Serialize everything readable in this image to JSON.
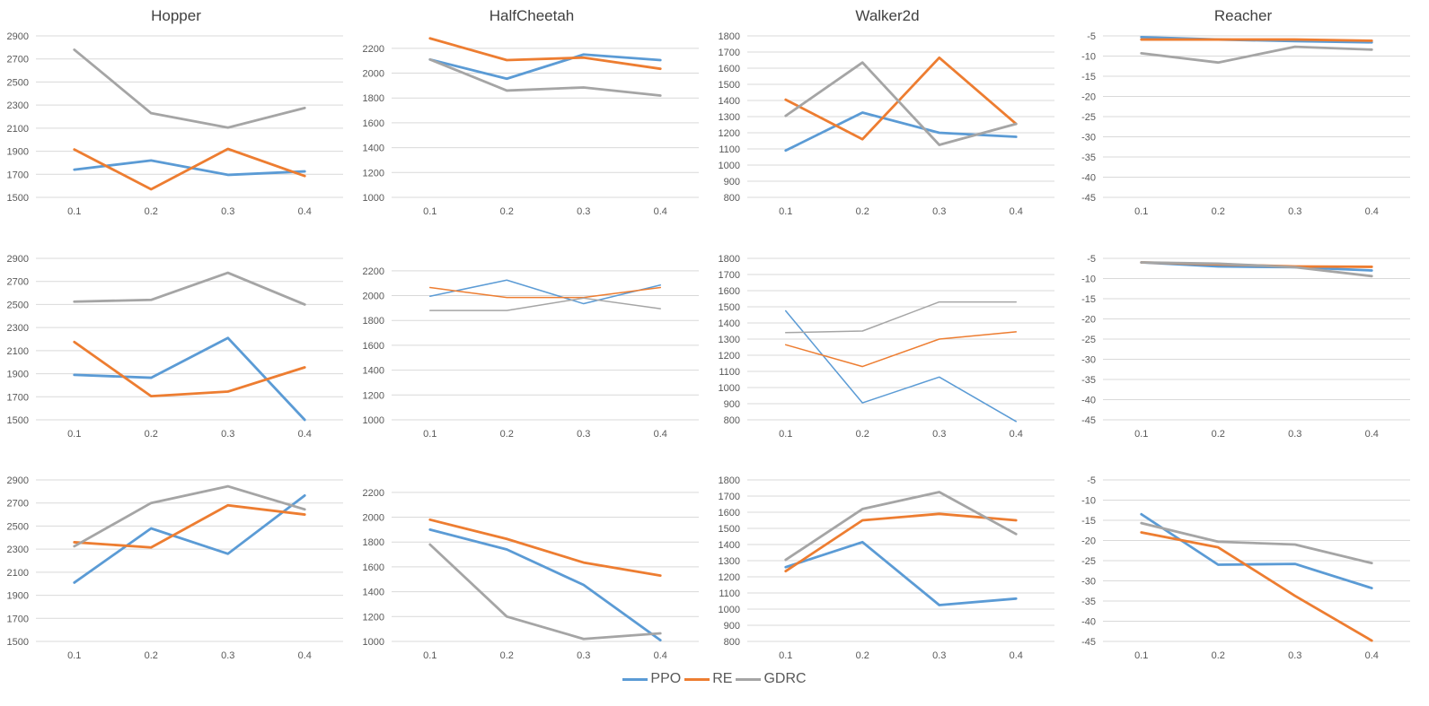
{
  "colors": {
    "PPO": "#5B9BD5",
    "RE": "#ED7D31",
    "GDRC": "#A5A5A5"
  },
  "legend": [
    {
      "name": "PPO",
      "color": "#5B9BD5"
    },
    {
      "name": "RE",
      "color": "#ED7D31"
    },
    {
      "name": "GDRC",
      "color": "#A5A5A5"
    }
  ],
  "columns": [
    "Hopper",
    "HalfCheetah",
    "Walker2d",
    "Reacher"
  ],
  "chart_data": [
    {
      "type": "line",
      "env": "Hopper",
      "row": 0,
      "title": "Hopper",
      "categories": [
        "0.1",
        "0.2",
        "0.3",
        "0.4"
      ],
      "yticks": [
        1500,
        1700,
        1900,
        2100,
        2300,
        2500,
        2700,
        2900
      ],
      "ylim": [
        1500,
        2900
      ],
      "series": [
        {
          "name": "PPO",
          "values": [
            1740,
            1820,
            1695,
            1725
          ],
          "thin": false
        },
        {
          "name": "RE",
          "values": [
            1915,
            1570,
            1920,
            1685
          ],
          "thin": false
        },
        {
          "name": "GDRC",
          "values": [
            2780,
            2230,
            2105,
            2275
          ],
          "thin": false
        }
      ]
    },
    {
      "type": "line",
      "env": "HalfCheetah",
      "row": 0,
      "title": "HalfCheetah",
      "categories": [
        "0.1",
        "0.2",
        "0.3",
        "0.4"
      ],
      "yticks": [
        1000,
        1200,
        1400,
        1600,
        1800,
        2000,
        2200
      ],
      "ylim": [
        1000,
        2300
      ],
      "series": [
        {
          "name": "PPO",
          "values": [
            2110,
            1955,
            2150,
            2105
          ],
          "thin": false
        },
        {
          "name": "RE",
          "values": [
            2280,
            2105,
            2125,
            2035
          ],
          "thin": false
        },
        {
          "name": "GDRC",
          "values": [
            2110,
            1860,
            1885,
            1820
          ],
          "thin": false
        }
      ]
    },
    {
      "type": "line",
      "env": "Walker2d",
      "row": 0,
      "title": "Walker2d",
      "categories": [
        "0.1",
        "0.2",
        "0.3",
        "0.4"
      ],
      "yticks": [
        800,
        900,
        1000,
        1100,
        1200,
        1300,
        1400,
        1500,
        1600,
        1700,
        1800
      ],
      "ylim": [
        800,
        1800
      ],
      "series": [
        {
          "name": "PPO",
          "values": [
            1090,
            1325,
            1200,
            1175
          ],
          "thin": false
        },
        {
          "name": "RE",
          "values": [
            1405,
            1160,
            1665,
            1255
          ],
          "thin": false
        },
        {
          "name": "GDRC",
          "values": [
            1305,
            1635,
            1125,
            1255
          ],
          "thin": false
        }
      ]
    },
    {
      "type": "line",
      "env": "Reacher",
      "row": 0,
      "title": "Reacher",
      "categories": [
        "0.1",
        "0.2",
        "0.3",
        "0.4"
      ],
      "yticks": [
        -45,
        -40,
        -35,
        -30,
        -25,
        -20,
        -15,
        -10,
        -5
      ],
      "ylim": [
        -45,
        -5
      ],
      "series": [
        {
          "name": "PPO",
          "values": [
            -5.3,
            -5.9,
            -6.3,
            -6.6
          ],
          "thin": false
        },
        {
          "name": "RE",
          "values": [
            -5.9,
            -5.9,
            -5.9,
            -6.2
          ],
          "thin": false
        },
        {
          "name": "GDRC",
          "values": [
            -9.3,
            -11.6,
            -7.7,
            -8.4
          ],
          "thin": false
        }
      ]
    },
    {
      "type": "line",
      "env": "Hopper",
      "row": 1,
      "categories": [
        "0.1",
        "0.2",
        "0.3",
        "0.4"
      ],
      "yticks": [
        1500,
        1700,
        1900,
        2100,
        2300,
        2500,
        2700,
        2900
      ],
      "ylim": [
        1500,
        2900
      ],
      "series": [
        {
          "name": "PPO",
          "values": [
            1890,
            1865,
            2210,
            1500
          ],
          "thin": false
        },
        {
          "name": "RE",
          "values": [
            2175,
            1705,
            1745,
            1955
          ],
          "thin": false
        },
        {
          "name": "GDRC",
          "values": [
            2525,
            2540,
            2775,
            2500
          ],
          "thin": false
        }
      ]
    },
    {
      "type": "line",
      "env": "HalfCheetah",
      "row": 1,
      "categories": [
        "0.1",
        "0.2",
        "0.3",
        "0.4"
      ],
      "yticks": [
        1000,
        1200,
        1400,
        1600,
        1800,
        2000,
        2200
      ],
      "ylim": [
        1000,
        2300
      ],
      "series": [
        {
          "name": "PPO",
          "values": [
            1995,
            2125,
            1935,
            2085
          ],
          "thin": true
        },
        {
          "name": "RE",
          "values": [
            2065,
            1985,
            1985,
            2065
          ],
          "thin": true
        },
        {
          "name": "GDRC",
          "values": [
            1880,
            1880,
            1980,
            1895
          ],
          "thin": true
        }
      ]
    },
    {
      "type": "line",
      "env": "Walker2d",
      "row": 1,
      "categories": [
        "0.1",
        "0.2",
        "0.3",
        "0.4"
      ],
      "yticks": [
        800,
        900,
        1000,
        1100,
        1200,
        1300,
        1400,
        1500,
        1600,
        1700,
        1800
      ],
      "ylim": [
        800,
        1800
      ],
      "series": [
        {
          "name": "PPO",
          "values": [
            1475,
            905,
            1065,
            790
          ],
          "thin": true
        },
        {
          "name": "RE",
          "values": [
            1265,
            1130,
            1300,
            1345
          ],
          "thin": true
        },
        {
          "name": "GDRC",
          "values": [
            1340,
            1350,
            1530,
            1530
          ],
          "thin": true
        }
      ]
    },
    {
      "type": "line",
      "env": "Reacher",
      "row": 1,
      "categories": [
        "0.1",
        "0.2",
        "0.3",
        "0.4"
      ],
      "yticks": [
        -45,
        -40,
        -35,
        -30,
        -25,
        -20,
        -15,
        -10,
        -5
      ],
      "ylim": [
        -45,
        -5
      ],
      "series": [
        {
          "name": "PPO",
          "values": [
            -6.0,
            -7.0,
            -7.2,
            -8.0
          ],
          "thin": false
        },
        {
          "name": "RE",
          "values": [
            -6.0,
            -6.5,
            -7.0,
            -7.1
          ],
          "thin": false
        },
        {
          "name": "GDRC",
          "values": [
            -6.0,
            -6.3,
            -7.2,
            -9.4
          ],
          "thin": false
        }
      ]
    },
    {
      "type": "line",
      "env": "Hopper",
      "row": 2,
      "categories": [
        "0.1",
        "0.2",
        "0.3",
        "0.4"
      ],
      "yticks": [
        1500,
        1700,
        1900,
        2100,
        2300,
        2500,
        2700,
        2900
      ],
      "ylim": [
        1500,
        2900
      ],
      "series": [
        {
          "name": "PPO",
          "values": [
            2010,
            2480,
            2260,
            2765
          ],
          "thin": false
        },
        {
          "name": "RE",
          "values": [
            2360,
            2315,
            2680,
            2600
          ],
          "thin": false
        },
        {
          "name": "GDRC",
          "values": [
            2325,
            2700,
            2845,
            2645
          ],
          "thin": false
        }
      ]
    },
    {
      "type": "line",
      "env": "HalfCheetah",
      "row": 2,
      "categories": [
        "0.1",
        "0.2",
        "0.3",
        "0.4"
      ],
      "yticks": [
        1000,
        1200,
        1400,
        1600,
        1800,
        2000,
        2200
      ],
      "ylim": [
        1000,
        2300
      ],
      "series": [
        {
          "name": "PPO",
          "values": [
            1900,
            1740,
            1455,
            1010
          ],
          "thin": false
        },
        {
          "name": "RE",
          "values": [
            1980,
            1825,
            1635,
            1530
          ],
          "thin": false
        },
        {
          "name": "GDRC",
          "values": [
            1780,
            1200,
            1020,
            1065
          ],
          "thin": false
        }
      ]
    },
    {
      "type": "line",
      "env": "Walker2d",
      "row": 2,
      "categories": [
        "0.1",
        "0.2",
        "0.3",
        "0.4"
      ],
      "yticks": [
        800,
        900,
        1000,
        1100,
        1200,
        1300,
        1400,
        1500,
        1600,
        1700,
        1800
      ],
      "ylim": [
        800,
        1800
      ],
      "series": [
        {
          "name": "PPO",
          "values": [
            1260,
            1415,
            1025,
            1065
          ],
          "thin": false
        },
        {
          "name": "RE",
          "values": [
            1235,
            1550,
            1590,
            1550
          ],
          "thin": false
        },
        {
          "name": "GDRC",
          "values": [
            1305,
            1620,
            1725,
            1465
          ],
          "thin": false
        }
      ]
    },
    {
      "type": "line",
      "env": "Reacher",
      "row": 2,
      "categories": [
        "0.1",
        "0.2",
        "0.3",
        "0.4"
      ],
      "yticks": [
        -45,
        -40,
        -35,
        -30,
        -25,
        -20,
        -15,
        -10,
        -5
      ],
      "ylim": [
        -45,
        -5
      ],
      "series": [
        {
          "name": "PPO",
          "values": [
            -13.5,
            -26.0,
            -25.8,
            -31.8
          ],
          "thin": false
        },
        {
          "name": "RE",
          "values": [
            -18.0,
            -21.7,
            -33.7,
            -44.8
          ],
          "thin": false
        },
        {
          "name": "GDRC",
          "values": [
            -15.7,
            -20.3,
            -21.0,
            -25.6
          ],
          "thin": false
        }
      ]
    }
  ]
}
